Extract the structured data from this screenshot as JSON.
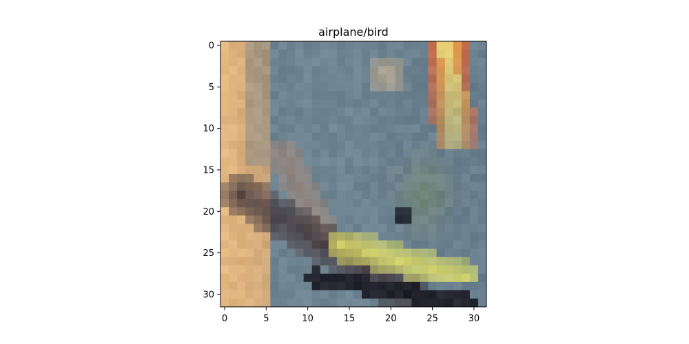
{
  "figure": {
    "title": "airplane/bird",
    "image_shape": [
      32,
      32
    ],
    "x_ticks": [
      "0",
      "5",
      "10",
      "15",
      "20",
      "25",
      "30"
    ],
    "y_ticks": [
      "0",
      "5",
      "10",
      "15",
      "20",
      "25",
      "30"
    ]
  },
  "image_content": {
    "description_colors": {
      "sky": "#6b8191",
      "left_edge": "#e5b97c",
      "flame": "#ef9a3e",
      "flame_core": "#f7dc74",
      "wing_dark": "#42353a",
      "body_yellow": "#e5e16a",
      "black": "#1b1b24"
    }
  }
}
